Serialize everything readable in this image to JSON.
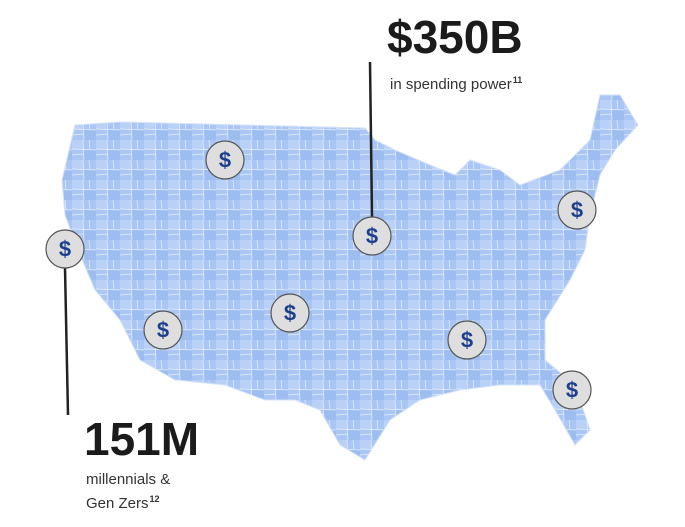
{
  "stats": [
    {
      "value": "$350B",
      "caption_lines": [
        "in spending power"
      ],
      "footnote": "11"
    },
    {
      "value": "151M",
      "caption_lines": [
        "millennials &",
        "Gen Zers"
      ],
      "footnote": "12"
    }
  ],
  "marker_symbol": "$"
}
